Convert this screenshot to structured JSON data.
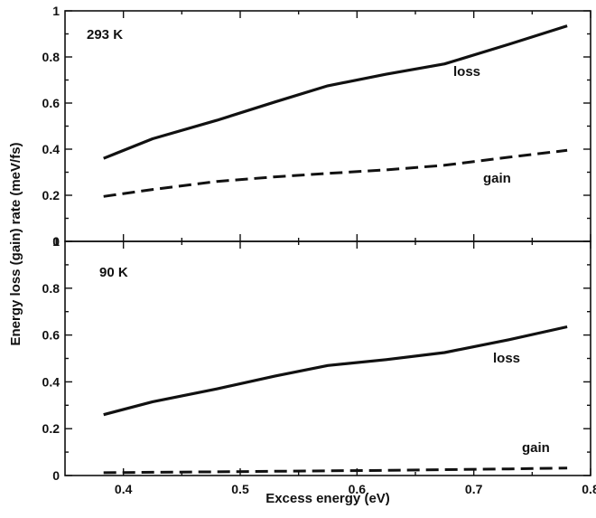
{
  "chart_data": [
    {
      "type": "line",
      "panel_label": "293 K",
      "x": [
        0.383,
        0.425,
        0.48,
        0.53,
        0.575,
        0.625,
        0.675,
        0.73,
        0.78
      ],
      "series": [
        {
          "name": "loss",
          "style": "solid",
          "values": [
            0.36,
            0.445,
            0.525,
            0.605,
            0.675,
            0.725,
            0.77,
            0.855,
            0.935
          ]
        },
        {
          "name": "gain",
          "style": "dashed",
          "values": [
            0.195,
            0.225,
            0.26,
            0.28,
            0.295,
            0.31,
            0.33,
            0.365,
            0.395
          ]
        }
      ],
      "xlim": [
        0.35,
        0.8
      ],
      "ylim": [
        0,
        1
      ],
      "yticks": [
        "0",
        "0.2",
        "0.4",
        "0.6",
        "0.8",
        "1"
      ]
    },
    {
      "type": "line",
      "panel_label": "90 K",
      "x": [
        0.383,
        0.425,
        0.48,
        0.53,
        0.575,
        0.625,
        0.675,
        0.73,
        0.78
      ],
      "series": [
        {
          "name": "loss",
          "style": "solid",
          "values": [
            0.26,
            0.315,
            0.37,
            0.425,
            0.47,
            0.495,
            0.525,
            0.58,
            0.635
          ]
        },
        {
          "name": "gain",
          "style": "dashed",
          "values": [
            0.012,
            0.014,
            0.016,
            0.018,
            0.02,
            0.022,
            0.025,
            0.028,
            0.032
          ]
        }
      ],
      "xlim": [
        0.35,
        0.8
      ],
      "ylim": [
        0,
        1
      ],
      "yticks": [
        "0",
        "0.2",
        "0.4",
        "0.6",
        "0.8",
        "1"
      ],
      "xticks": [
        "0.4",
        "0.5",
        "0.6",
        "0.7",
        "0.8"
      ],
      "xlabel": "Excess energy (eV)"
    }
  ],
  "shared_ylabel": "Energy loss (gain) rate (meV/fs)"
}
